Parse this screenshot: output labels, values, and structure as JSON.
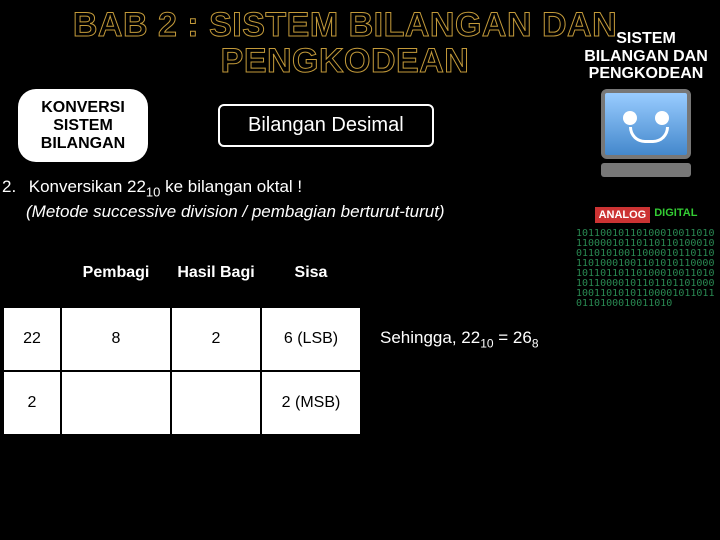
{
  "title": "BAB 2 : SISTEM BILANGAN DAN PENGKODEAN",
  "leftTag": "KONVERSI SISTEM BILANGAN",
  "subjectBox": "Bilangan Desimal",
  "question": {
    "num": "2.",
    "textA": "Konversikan 22",
    "subA": "10",
    "textB": " ke bilangan oktal !",
    "method": "(Metode successive division / pembagian berturut-turut)"
  },
  "table": {
    "headers": [
      "",
      "Pembagi",
      "Hasil Bagi",
      "Sisa"
    ],
    "rows": [
      [
        "22",
        "8",
        "2",
        "6 (LSB)"
      ],
      [
        "2",
        "",
        "",
        "2 (MSB)"
      ]
    ]
  },
  "result": {
    "pre": "Sehingga, 22",
    "sub1": "10",
    "mid": " = 26",
    "sub2": "8"
  },
  "sidebar": {
    "title": "SISTEM BILANGAN DAN PENGKODEAN",
    "analog": "ANALOG",
    "digital": "DIGITAL",
    "bin": "101100101101000100110101100001011011011010001001101010011000010110110110100010011010101100001011011011010001001101010110000101101101101000100110101011000010110110110100010011010"
  }
}
